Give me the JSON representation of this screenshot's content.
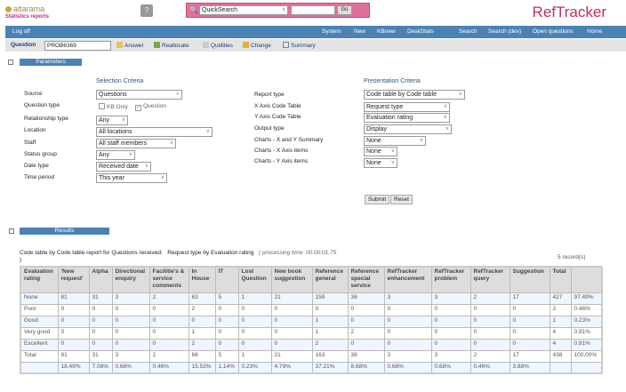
{
  "header": {
    "logo": "altarama",
    "subtitle": "Statistics reports",
    "help_icon": "help-book-icon",
    "quicksearch": {
      "selected": "QuickSearch",
      "value": "",
      "go_label": "Go"
    },
    "brand": "RefTracker",
    "brand_color": "#c0305a"
  },
  "nav": {
    "logoff": "Log off",
    "items": [
      "System",
      "New",
      "KBnew",
      "DeskStats",
      "Search",
      "Search (dev)",
      "Open questions",
      "Home"
    ],
    "color": "#4a82b6"
  },
  "question_bar": {
    "label": "Question",
    "value": "PROB6369",
    "actions": [
      "Answer",
      "Reallocate",
      "Qutilities",
      "Change",
      "Summary"
    ]
  },
  "parameters": {
    "title": "Parameters",
    "selection": {
      "heading": "Selection Criteria",
      "source_label": "Source",
      "source": "Questions",
      "qtype_label": "Question type",
      "kb_only": "KB Only",
      "question": "Question",
      "rel_label": "Relationship type",
      "rel": "Any",
      "loc_label": "Location",
      "loc": "All locations",
      "staff_label": "Staff",
      "staff": "All staff members",
      "status_label": "Status group",
      "status": "Any",
      "date_label": "Date type",
      "date": "Received date",
      "period_label": "Time period",
      "period": "This year"
    },
    "presentation": {
      "heading": "Presentation Criteria",
      "report_label": "Report type",
      "report": "Code table by Code table",
      "x_label": "X Axis Code Table",
      "x": "Request type",
      "y_label": "Y Axis Code Table",
      "y": "Evaluation rating",
      "out_label": "Output type",
      "out": "Display",
      "cxy_label": "Charts - X and Y Summary",
      "cxy": "None",
      "cx_label": "Charts - X Axis items",
      "cx": "None",
      "cy_label": "Charts - Y Axis items",
      "cy": "None"
    },
    "submit": "Submit",
    "reset": "Reset"
  },
  "results": {
    "title": "Results",
    "caption": "Code table by Code table report for Questions received:",
    "caption2": "Request type by Evaluation rating",
    "processing": "( processing time: 00:00:01.75",
    "close_paren": ")",
    "records": "5 record(s)",
    "columns": [
      "Evaluation rating",
      "'New request'",
      "Alpha",
      "Directional enquiry",
      "Facilitie's & service comments",
      "In House",
      "IT",
      "Lost Question",
      "New book suggestion",
      "Reference general",
      "Reference special service",
      "RefTracker enhancement",
      "RefTracker problem",
      "RefTracker query",
      "Suggestion",
      "Total",
      ""
    ],
    "rows": [
      [
        "None",
        "81",
        "31",
        "3",
        "2",
        "63",
        "5",
        "1",
        "21",
        "159",
        "36",
        "3",
        "3",
        "2",
        "17",
        "427",
        "97.49%"
      ],
      [
        "Poor",
        "0",
        "0",
        "0",
        "0",
        "2",
        "0",
        "0",
        "0",
        "0",
        "0",
        "0",
        "0",
        "0",
        "0",
        "2",
        "0.46%"
      ],
      [
        "Good",
        "0",
        "0",
        "0",
        "0",
        "0",
        "0",
        "0",
        "0",
        "1",
        "0",
        "0",
        "0",
        "0",
        "0",
        "1",
        "0.23%"
      ],
      [
        "Very good",
        "0",
        "0",
        "0",
        "0",
        "1",
        "0",
        "0",
        "0",
        "1",
        "2",
        "0",
        "0",
        "0",
        "0",
        "4",
        "0.91%"
      ],
      [
        "Excellent",
        "0",
        "0",
        "0",
        "0",
        "2",
        "0",
        "0",
        "0",
        "2",
        "0",
        "0",
        "0",
        "0",
        "0",
        "4",
        "0.91%"
      ],
      [
        "Total",
        "81",
        "31",
        "3",
        "2",
        "68",
        "5",
        "1",
        "21",
        "163",
        "38",
        "3",
        "3",
        "2",
        "17",
        "438",
        "100.00%"
      ],
      [
        "",
        "18.49%",
        "7.08%",
        "0.68%",
        "0.46%",
        "15.53%",
        "1.14%",
        "0.23%",
        "4.79%",
        "37.21%",
        "8.68%",
        "0.68%",
        "0.68%",
        "0.46%",
        "3.88%",
        "",
        ""
      ]
    ]
  }
}
